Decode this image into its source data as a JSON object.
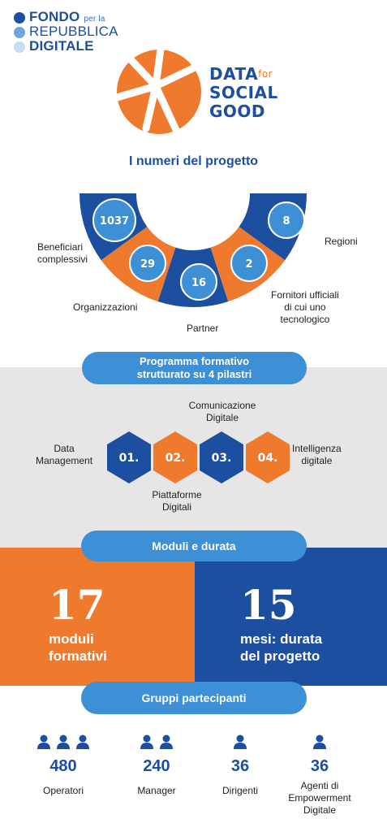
{
  "colors": {
    "blue": "#1d4fa0",
    "light_blue": "#3d8fd6",
    "orange": "#ef7a2e",
    "grey": "#e6e6e6"
  },
  "fondo_logo": {
    "line1": "FONDO",
    "line1_small": "per la",
    "line2": "REPUBBLICA",
    "line3": "DIGITALE"
  },
  "dfsg_logo": {
    "data": "DATA",
    "for": "for",
    "social": "SOCIAL",
    "good": "GOOD",
    "icon": "orange-ball-icon"
  },
  "numbers": {
    "title": "I numeri del progetto",
    "items": [
      {
        "value": "1037",
        "label": "Beneficiari complessivi"
      },
      {
        "value": "29",
        "label": "Organizzazioni"
      },
      {
        "value": "16",
        "label": "Partner"
      },
      {
        "value": "2",
        "label": "Fornitori ufficiali di cui uno tecnologico"
      },
      {
        "value": "8",
        "label": "Regioni"
      }
    ],
    "label_lines": {
      "beneficiari": [
        "Beneficiari",
        "complessivi"
      ],
      "fornitori": [
        "Fornitori ufficiali",
        "di cui uno",
        "tecnologico"
      ]
    }
  },
  "programma": {
    "title_line1": "Programma formativo",
    "title_line2": "strutturato su 4 pilastri",
    "pillars": [
      {
        "num": "01.",
        "label_lines": [
          "Data",
          "Management"
        ]
      },
      {
        "num": "02.",
        "label_lines": [
          "Piattaforme",
          "Digitali"
        ]
      },
      {
        "num": "03.",
        "label_lines": [
          "Comunicazione",
          "Digitale"
        ]
      },
      {
        "num": "04.",
        "label_lines": [
          "Intelligenza",
          "digitale"
        ]
      }
    ]
  },
  "moduli": {
    "title": "Moduli e durata",
    "left": {
      "value": "17",
      "line1": "moduli",
      "line2": "formativi"
    },
    "right": {
      "value": "15",
      "line1": "mesi: durata",
      "line2": "del progetto"
    }
  },
  "gruppi": {
    "title": "Gruppi partecipanti",
    "items": [
      {
        "value": "480",
        "label": "Operatori",
        "icons": 3
      },
      {
        "value": "240",
        "label": "Manager",
        "icons": 2
      },
      {
        "value": "36",
        "label": "Dirigenti",
        "icons": 1
      },
      {
        "value": "36",
        "label_lines": [
          "Agenti di",
          "Empowerment",
          "Digitale"
        ],
        "icons": 1
      }
    ]
  }
}
